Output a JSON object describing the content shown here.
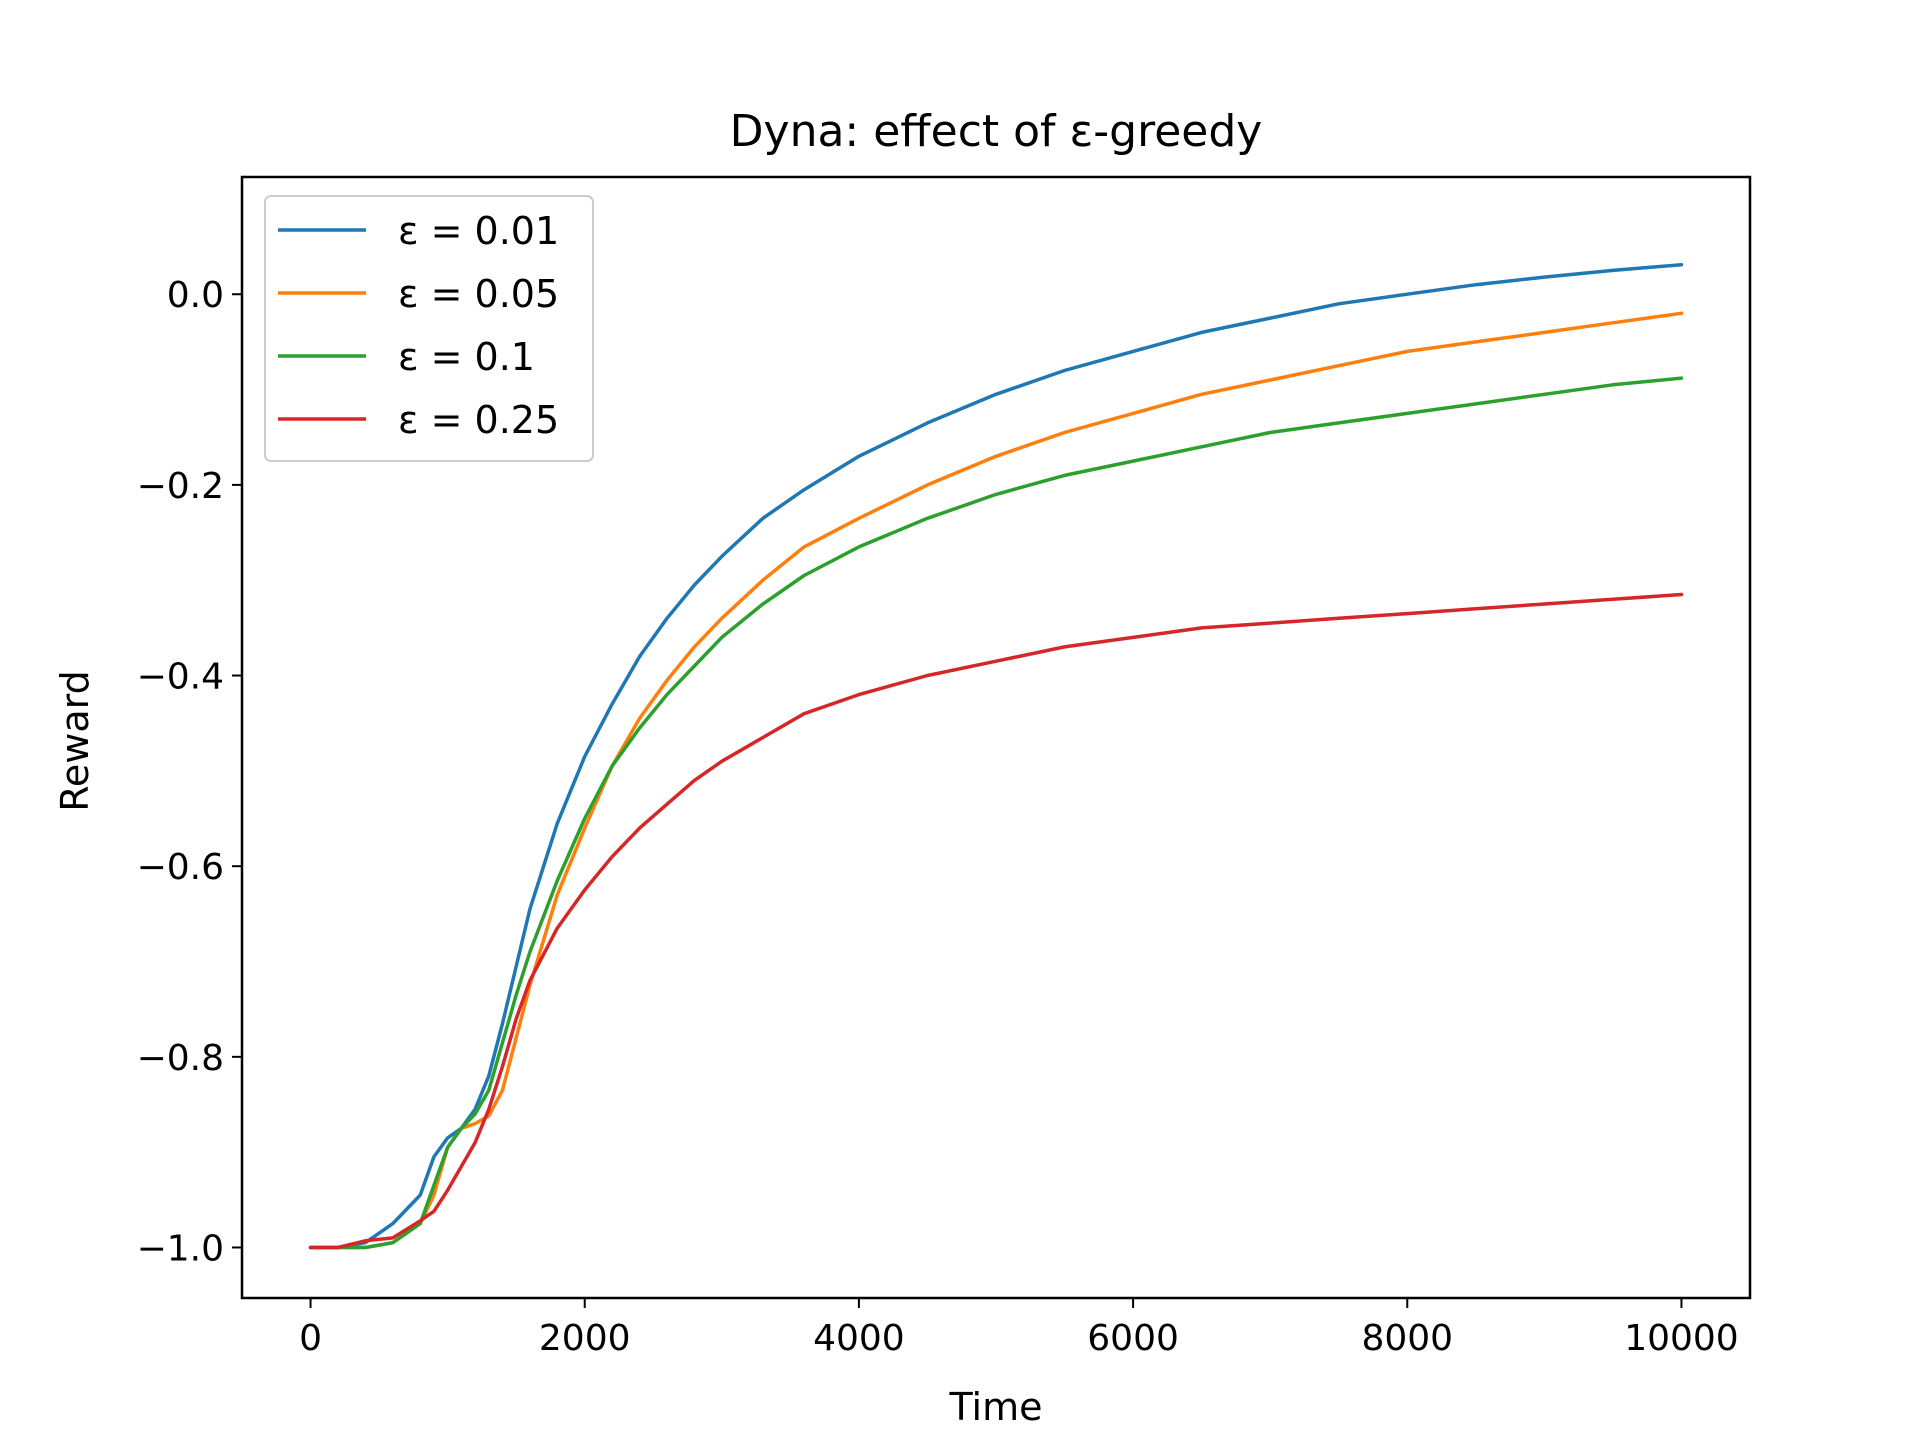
{
  "chart_data": {
    "type": "line",
    "title": "Dyna: effect of ε-greedy",
    "xlabel": "Time",
    "ylabel": "Reward",
    "xlim": [
      -500,
      10500
    ],
    "ylim": [
      -1.053,
      0.123
    ],
    "xticks": [
      0,
      2000,
      4000,
      6000,
      8000,
      10000
    ],
    "xtick_labels": [
      "0",
      "2000",
      "4000",
      "6000",
      "8000",
      "10000"
    ],
    "yticks": [
      -1.0,
      -0.8,
      -0.6,
      -0.4,
      -0.2,
      0.0
    ],
    "ytick_labels": [
      "−1.0",
      "−0.8",
      "−0.6",
      "−0.4",
      "−0.2",
      "0.0"
    ],
    "grid": false,
    "legend_position": "top-left",
    "x": [
      0,
      200,
      400,
      600,
      800,
      900,
      1000,
      1100,
      1200,
      1300,
      1400,
      1500,
      1600,
      1800,
      2000,
      2200,
      2400,
      2600,
      2800,
      3000,
      3300,
      3600,
      4000,
      4500,
      5000,
      5500,
      6000,
      6500,
      7000,
      7500,
      8000,
      8500,
      9000,
      9500,
      10000
    ],
    "series": [
      {
        "name": "ε = 0.01",
        "color": "#1f77b4",
        "values": [
          -1.0,
          -1.0,
          -0.995,
          -0.975,
          -0.945,
          -0.905,
          -0.885,
          -0.875,
          -0.855,
          -0.82,
          -0.765,
          -0.705,
          -0.645,
          -0.555,
          -0.485,
          -0.43,
          -0.38,
          -0.34,
          -0.305,
          -0.275,
          -0.235,
          -0.205,
          -0.17,
          -0.135,
          -0.105,
          -0.08,
          -0.06,
          -0.04,
          -0.025,
          -0.01,
          0.0,
          0.01,
          0.018,
          0.025,
          0.031
        ]
      },
      {
        "name": "ε = 0.05",
        "color": "#ff7f0e",
        "values": [
          -1.0,
          -1.0,
          -1.0,
          -0.995,
          -0.975,
          -0.945,
          -0.895,
          -0.875,
          -0.87,
          -0.862,
          -0.835,
          -0.78,
          -0.725,
          -0.63,
          -0.56,
          -0.495,
          -0.445,
          -0.405,
          -0.37,
          -0.34,
          -0.3,
          -0.265,
          -0.235,
          -0.2,
          -0.17,
          -0.145,
          -0.125,
          -0.105,
          -0.09,
          -0.075,
          -0.06,
          -0.05,
          -0.04,
          -0.03,
          -0.02
        ]
      },
      {
        "name": "ε = 0.1",
        "color": "#2ca02c",
        "values": [
          -1.0,
          -1.0,
          -1.0,
          -0.995,
          -0.975,
          -0.935,
          -0.895,
          -0.875,
          -0.86,
          -0.835,
          -0.785,
          -0.735,
          -0.69,
          -0.615,
          -0.55,
          -0.495,
          -0.455,
          -0.42,
          -0.39,
          -0.36,
          -0.325,
          -0.295,
          -0.265,
          -0.235,
          -0.21,
          -0.19,
          -0.175,
          -0.16,
          -0.145,
          -0.135,
          -0.125,
          -0.115,
          -0.105,
          -0.095,
          -0.088
        ]
      },
      {
        "name": "ε = 0.25",
        "color": "#d62728",
        "values": [
          -1.0,
          -1.0,
          -0.993,
          -0.99,
          -0.972,
          -0.962,
          -0.94,
          -0.915,
          -0.89,
          -0.855,
          -0.81,
          -0.76,
          -0.72,
          -0.665,
          -0.625,
          -0.59,
          -0.56,
          -0.535,
          -0.51,
          -0.49,
          -0.465,
          -0.44,
          -0.42,
          -0.4,
          -0.385,
          -0.37,
          -0.36,
          -0.35,
          -0.345,
          -0.34,
          -0.335,
          -0.33,
          -0.325,
          -0.32,
          -0.315
        ]
      }
    ]
  }
}
